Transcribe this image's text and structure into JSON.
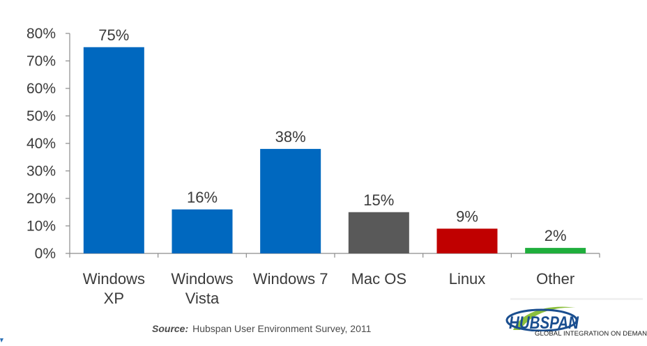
{
  "chart_data": {
    "type": "bar",
    "categories": [
      "Windows\nXP",
      "Windows\nVista",
      "Windows 7",
      "Mac OS",
      "Linux",
      "Other"
    ],
    "values": [
      75,
      16,
      38,
      15,
      9,
      2
    ],
    "data_labels": [
      "75%",
      "16%",
      "38%",
      "15%",
      "9%",
      "2%"
    ],
    "colors": [
      "#0068bf",
      "#0068bf",
      "#0068bf",
      "#595959",
      "#c00000",
      "#1fae3c"
    ],
    "ylim": [
      0,
      80
    ],
    "yticks": [
      0,
      10,
      20,
      30,
      40,
      50,
      60,
      70,
      80
    ],
    "ytick_labels": [
      "0%",
      "10%",
      "20%",
      "30%",
      "40%",
      "50%",
      "60%",
      "70%",
      "80%"
    ],
    "title": "",
    "xlabel": "",
    "ylabel": "",
    "grid": false,
    "legend": "none"
  },
  "source": {
    "prefix": "Source:",
    "text": "Hubspan User Environment Survey, 2011"
  },
  "logo": {
    "wordmark": "HUBSPAN",
    "tagline": "GLOBAL INTEGRATION ON DEMAND",
    "brand_color": "#1a4e8f",
    "accent_color": "#8bbf3c"
  }
}
